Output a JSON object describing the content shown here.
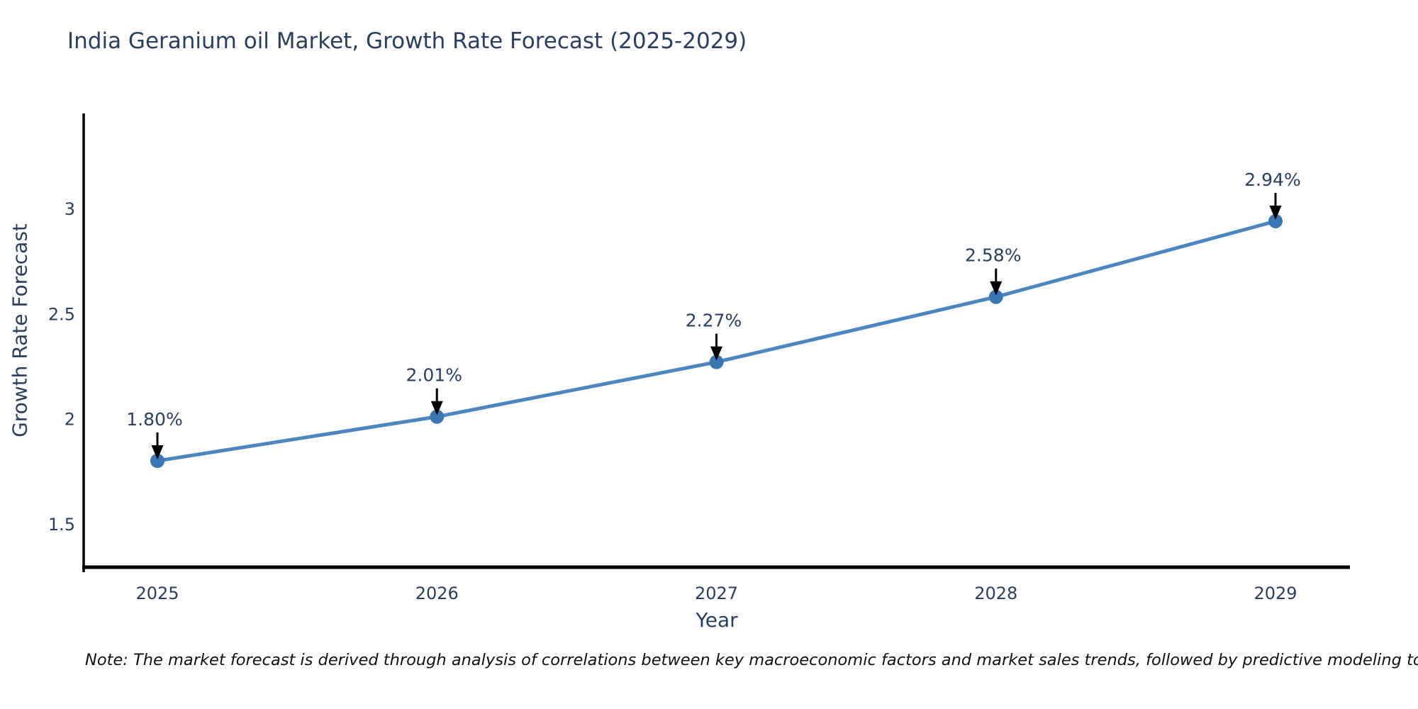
{
  "title": "India Geranium oil Market, Growth Rate Forecast (2025-2029)",
  "note": "Note: The market forecast is derived through analysis of correlations between key macroeconomic factors and market sales trends, followed by predictive modeling to project future sales",
  "chart_data": {
    "type": "line",
    "title": "India Geranium oil Market, Growth Rate Forecast (2025-2029)",
    "xlabel": "Year",
    "ylabel": "Growth Rate Forecast",
    "categories": [
      "2025",
      "2026",
      "2027",
      "2028",
      "2029"
    ],
    "values": [
      1.8,
      2.01,
      2.27,
      2.58,
      2.94
    ],
    "point_labels": [
      "1.80%",
      "2.01%",
      "2.27%",
      "2.58%",
      "2.94%"
    ],
    "ytick_values": [
      1.5,
      2,
      2.5,
      3
    ],
    "ytick_labels": [
      "1.5",
      "2",
      "2.5",
      "3"
    ],
    "ylim": [
      1.29,
      3.46
    ],
    "grid": false,
    "legend_position": "none",
    "colors": {
      "line": "#4a86c0",
      "marker": "#3a76b4",
      "arrow": "#000000",
      "axis": "#000000",
      "text": "#2a3f5f",
      "note_text": "#111111"
    }
  }
}
